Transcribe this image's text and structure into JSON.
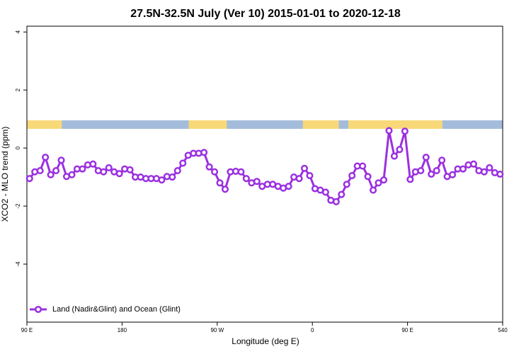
{
  "chart_data": {
    "type": "line",
    "title": "27.5N-32.5N July (Ver 10)   2015-01-01 to 2020-12-18",
    "x_label": "Longitude (deg E)",
    "y_label": "XCO2 - MLO trend (ppm)",
    "xlim": [
      90,
      540
    ],
    "xticks": [
      {
        "value": 90,
        "label": "90 E"
      },
      180,
      {
        "value": 270,
        "label": "90 W"
      },
      {
        "value": 360,
        "label": "0"
      },
      {
        "value": 450,
        "label": "90 E"
      },
      540
    ],
    "ylim": [
      -6,
      4.2
    ],
    "yticks": [
      -4,
      -2,
      0,
      2,
      4
    ],
    "land_color": "#f8d878",
    "ocean_color": "#a4bcdc",
    "land_segments": [
      [
        90,
        123
      ],
      [
        243,
        279
      ],
      [
        351,
        385
      ],
      [
        394,
        483
      ]
    ],
    "legend": "bottom-left",
    "x": [
      92.5,
      97.5,
      102.5,
      107.5,
      112.5,
      117.5,
      122.5,
      127.5,
      132.5,
      137.5,
      142.5,
      147.5,
      152.5,
      157.5,
      162.5,
      167.5,
      172.5,
      177.5,
      182.5,
      187.5,
      192.5,
      197.5,
      202.5,
      207.5,
      212.5,
      217.5,
      222.5,
      227.5,
      232.5,
      237.5,
      242.5,
      247.5,
      252.5,
      257.5,
      262.5,
      267.5,
      272.5,
      277.5,
      282.5,
      287.5,
      292.5,
      297.5,
      302.5,
      307.5,
      312.5,
      317.5,
      322.5,
      327.5,
      332.5,
      337.5,
      342.5,
      347.5,
      352.5,
      357.5,
      362.5,
      367.5,
      372.5,
      377.5,
      382.5,
      387.5,
      392.5,
      397.5,
      402.5,
      407.5,
      412.5,
      417.5,
      422.5,
      427.5,
      432.5,
      437.5,
      442.5,
      447.5,
      452.5,
      457.5,
      462.5,
      467.5,
      472.5,
      477.5,
      482.5,
      487.5,
      492.5,
      497.5,
      502.5,
      507.5,
      512.5,
      517.5,
      522.5,
      527.5,
      532.5,
      537.5
    ],
    "series": [
      {
        "name": "Land (Nadir&Glint) and Ocean (Glint)",
        "color": "#9b30e0",
        "values": [
          -1.05,
          -0.82,
          -0.78,
          -0.32,
          -0.92,
          -0.78,
          -0.42,
          -0.98,
          -0.92,
          -0.72,
          -0.72,
          -0.58,
          -0.55,
          -0.78,
          -0.82,
          -0.68,
          -0.82,
          -0.88,
          -0.72,
          -0.75,
          -1.0,
          -1.0,
          -1.05,
          -1.05,
          -1.05,
          -1.1,
          -0.98,
          -1.0,
          -0.78,
          -0.52,
          -0.25,
          -0.18,
          -0.18,
          -0.15,
          -0.65,
          -0.82,
          -1.2,
          -1.42,
          -0.82,
          -0.8,
          -0.82,
          -1.05,
          -1.2,
          -1.15,
          -1.32,
          -1.25,
          -1.25,
          -1.32,
          -1.38,
          -1.32,
          -1.0,
          -1.05,
          -0.7,
          -0.95,
          -1.4,
          -1.45,
          -1.52,
          -1.8,
          -1.85,
          -1.6,
          -1.25,
          -0.95,
          -0.62,
          -0.62,
          -0.98,
          -1.45,
          -1.2,
          -1.1,
          0.6,
          -0.28,
          -0.05,
          0.58,
          -1.08,
          -0.82,
          -0.78,
          -0.32,
          -0.9,
          -0.78,
          -0.42,
          -0.98,
          -0.92,
          -0.72,
          -0.72,
          -0.58,
          -0.55,
          -0.78,
          -0.82,
          -0.68,
          -0.85,
          -0.9
        ]
      }
    ]
  }
}
